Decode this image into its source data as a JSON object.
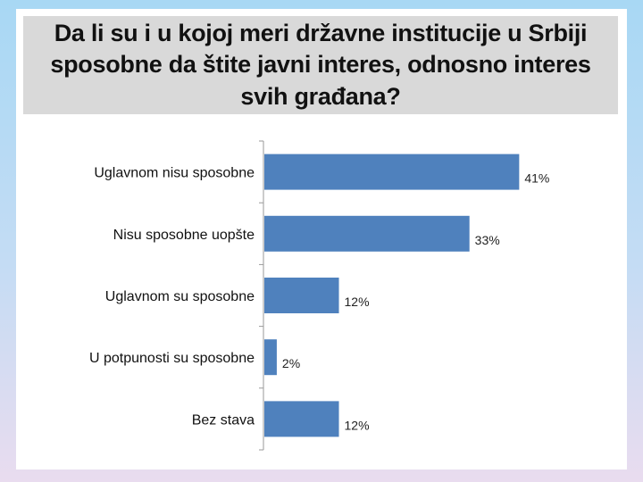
{
  "slide": {
    "title": "Da li su i u kojoj meri državne institucije u Srbiji sposobne da štite javni interes, odnosno interes svih građana?"
  },
  "chart_data": {
    "type": "bar",
    "orientation": "horizontal",
    "categories": [
      "Uglavnom nisu sposobne",
      "Nisu sposobne uopšte",
      "Uglavnom su sposobne",
      "U potpunosti su sposobne",
      "Bez stava"
    ],
    "values": [
      41,
      33,
      12,
      2,
      12
    ],
    "data_labels": [
      "41%",
      "33%",
      "12%",
      "2%",
      "12%"
    ],
    "xlim": [
      0,
      60
    ],
    "unit": "%",
    "grid": false,
    "legend": "none",
    "bar_color": "#4f81bd"
  }
}
